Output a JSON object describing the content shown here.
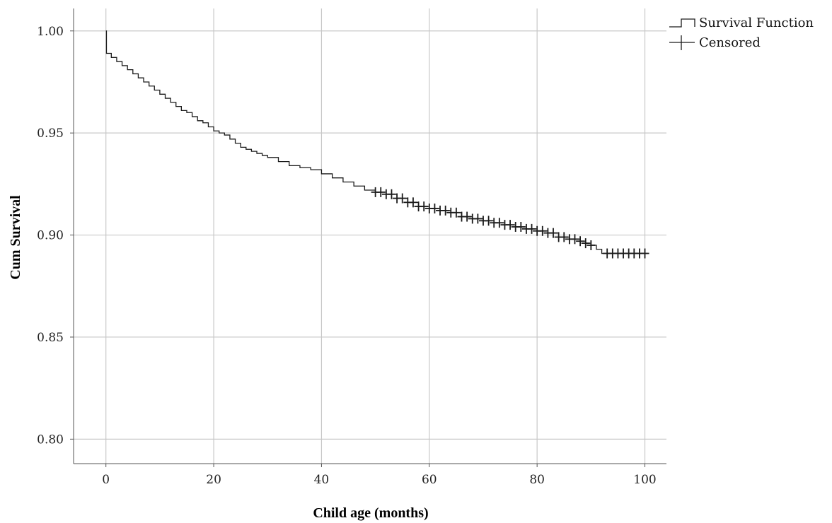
{
  "chart_data": {
    "type": "line",
    "title": "",
    "xlabel": "Child age (months)",
    "ylabel": "Cum Survival",
    "xlim": [
      -6,
      104
    ],
    "ylim": [
      0.788,
      1.011
    ],
    "xticks": [
      0,
      20,
      40,
      60,
      80,
      100
    ],
    "yticks": [
      0.8,
      0.85,
      0.9,
      0.95,
      1.0
    ],
    "xtick_labels": [
      "0",
      "20",
      "40",
      "60",
      "80",
      "100"
    ],
    "ytick_labels": [
      "0.80",
      "0.85",
      "0.90",
      "0.95",
      "1.00"
    ],
    "grid": true,
    "legend_position": "right-top",
    "colors": {
      "line": "#1a1a1a",
      "grid": "#c8c8c8",
      "axis": "#555555"
    },
    "legend": [
      {
        "name": "Survival Function",
        "icon": "step-line-icon"
      },
      {
        "name": "Censored",
        "icon": "cross-marker-icon"
      }
    ],
    "survival_function": {
      "name": "Survival Function",
      "x": [
        0,
        0.1,
        1,
        2,
        3,
        4,
        5,
        6,
        7,
        8,
        9,
        10,
        11,
        12,
        13,
        14,
        15,
        16,
        17,
        18,
        19,
        20,
        21,
        22,
        23,
        24,
        25,
        26,
        27,
        28,
        29,
        30,
        32,
        34,
        36,
        38,
        40,
        42,
        44,
        46,
        48,
        50,
        52,
        54,
        56,
        58,
        60,
        62,
        64,
        66,
        68,
        70,
        72,
        74,
        76,
        78,
        80,
        82,
        84,
        86,
        88,
        89,
        90,
        91,
        92,
        93,
        95,
        97,
        100
      ],
      "y": [
        1.0,
        0.989,
        0.987,
        0.985,
        0.983,
        0.981,
        0.979,
        0.977,
        0.975,
        0.973,
        0.971,
        0.969,
        0.967,
        0.965,
        0.963,
        0.961,
        0.96,
        0.958,
        0.956,
        0.955,
        0.953,
        0.951,
        0.95,
        0.949,
        0.947,
        0.945,
        0.943,
        0.942,
        0.941,
        0.94,
        0.939,
        0.938,
        0.936,
        0.934,
        0.933,
        0.932,
        0.93,
        0.928,
        0.926,
        0.924,
        0.922,
        0.921,
        0.92,
        0.918,
        0.916,
        0.914,
        0.913,
        0.912,
        0.911,
        0.909,
        0.908,
        0.907,
        0.906,
        0.905,
        0.904,
        0.903,
        0.902,
        0.901,
        0.899,
        0.898,
        0.897,
        0.896,
        0.895,
        0.893,
        0.891,
        0.891,
        0.891,
        0.891,
        0.891
      ],
      "x_end": 100.5
    },
    "censored": {
      "name": "Censored",
      "x": [
        50,
        51,
        52,
        53,
        54,
        55,
        56,
        57,
        58,
        59,
        60,
        61,
        62,
        63,
        64,
        65,
        66,
        67,
        68,
        69,
        70,
        71,
        72,
        73,
        74,
        75,
        76,
        77,
        78,
        79,
        80,
        81,
        82,
        83,
        84,
        85,
        86,
        87,
        88,
        89,
        90,
        93,
        94,
        95,
        96,
        97,
        98,
        99,
        100
      ]
    }
  }
}
